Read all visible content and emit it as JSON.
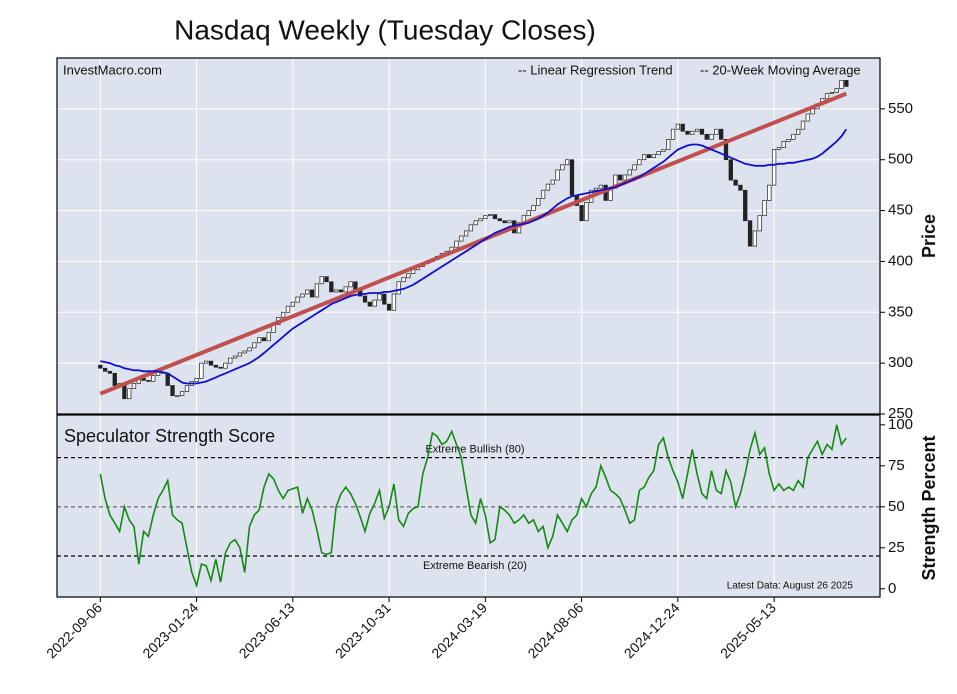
{
  "chart_data": [
    {
      "type": "candlestick",
      "title": "Nasdaq Weekly (Tuesday Closes)",
      "source": "InvestMacro.com",
      "y_label": "Price",
      "categories": [
        "2022-09-06",
        null,
        null,
        null,
        null,
        null,
        null,
        null,
        null,
        null,
        null,
        null,
        null,
        null,
        null,
        null,
        null,
        null,
        null,
        null,
        "2023-01-24",
        null,
        null,
        null,
        null,
        null,
        null,
        null,
        null,
        null,
        null,
        null,
        null,
        null,
        null,
        null,
        null,
        null,
        null,
        null,
        "2023-06-13",
        null,
        null,
        null,
        null,
        null,
        null,
        null,
        null,
        null,
        null,
        null,
        null,
        null,
        null,
        null,
        null,
        null,
        null,
        null,
        "2023-10-31",
        null,
        null,
        null,
        null,
        null,
        null,
        null,
        null,
        null,
        null,
        null,
        null,
        null,
        null,
        null,
        null,
        null,
        null,
        null,
        "2024-03-19",
        null,
        null,
        null,
        null,
        null,
        null,
        null,
        null,
        null,
        null,
        null,
        null,
        null,
        null,
        null,
        null,
        null,
        null,
        null,
        "2024-08-06",
        null,
        null,
        null,
        null,
        null,
        null,
        null,
        null,
        null,
        null,
        null,
        null,
        null,
        null,
        null,
        null,
        null,
        null,
        null,
        "2024-12-24",
        null,
        null,
        null,
        null,
        null,
        null,
        null,
        null,
        null,
        null,
        null,
        null,
        null,
        null,
        null,
        null,
        null,
        null,
        null,
        "2025-05-13",
        null,
        null,
        null,
        null,
        null,
        null,
        null,
        null,
        null,
        null,
        null,
        null,
        null,
        null,
        null
      ],
      "open": [
        298,
        295,
        292,
        290,
        278,
        280,
        265,
        275,
        280,
        285,
        283,
        282,
        288,
        291,
        290,
        278,
        268,
        268,
        272,
        278,
        282,
        285,
        300,
        302,
        298,
        296,
        295,
        300,
        305,
        307,
        310,
        312,
        315,
        320,
        325,
        322,
        330,
        338,
        345,
        350,
        356,
        360,
        365,
        368,
        372,
        365,
        378,
        385,
        380,
        370,
        372,
        370,
        375,
        380,
        372,
        366,
        360,
        356,
        362,
        368,
        358,
        352,
        368,
        380,
        384,
        388,
        392,
        395,
        398,
        400,
        402,
        405,
        408,
        410,
        414,
        420,
        425,
        430,
        436,
        440,
        442,
        445,
        446,
        442,
        440,
        438,
        440,
        428,
        438,
        445,
        450,
        455,
        462,
        470,
        476,
        480,
        490,
        495,
        500,
        465,
        455,
        440,
        458,
        470,
        472,
        475,
        460,
        472,
        485,
        480,
        485,
        490,
        495,
        500,
        505,
        502,
        505,
        508,
        510,
        520,
        530,
        535,
        528,
        525,
        528,
        530,
        525,
        520,
        525,
        530,
        520,
        500,
        480,
        475,
        470,
        440,
        415,
        430,
        445,
        460,
        475,
        510,
        512,
        518,
        520,
        525,
        530,
        538,
        545,
        550,
        555,
        560,
        565,
        566,
        570,
        578
      ],
      "close": [
        295,
        292,
        290,
        278,
        280,
        265,
        275,
        280,
        285,
        283,
        282,
        288,
        291,
        290,
        278,
        268,
        268,
        272,
        278,
        282,
        285,
        300,
        302,
        298,
        296,
        295,
        300,
        305,
        307,
        310,
        312,
        315,
        320,
        325,
        322,
        330,
        338,
        345,
        350,
        356,
        360,
        365,
        368,
        372,
        365,
        378,
        385,
        380,
        370,
        372,
        370,
        375,
        380,
        372,
        366,
        360,
        356,
        362,
        368,
        358,
        352,
        368,
        380,
        384,
        388,
        392,
        395,
        398,
        400,
        402,
        405,
        408,
        410,
        414,
        420,
        425,
        430,
        436,
        440,
        442,
        445,
        446,
        442,
        440,
        438,
        440,
        428,
        438,
        445,
        450,
        455,
        462,
        470,
        476,
        480,
        490,
        495,
        500,
        465,
        455,
        440,
        458,
        470,
        472,
        475,
        460,
        472,
        485,
        480,
        485,
        490,
        495,
        500,
        505,
        502,
        505,
        508,
        510,
        520,
        530,
        535,
        528,
        525,
        528,
        530,
        525,
        520,
        525,
        530,
        520,
        500,
        480,
        475,
        470,
        440,
        415,
        430,
        445,
        460,
        475,
        510,
        512,
        518,
        520,
        525,
        530,
        538,
        545,
        550,
        555,
        560,
        565,
        566,
        570,
        578,
        572
      ],
      "up_color": "#ffffff",
      "down_color": "#222222",
      "lines": [
        {
          "name": "-- Linear Regression Trend",
          "color": "#c0504d",
          "values": [
            270,
            565
          ]
        },
        {
          "name": "-- 20-Week Moving Average",
          "color": "#1010cc",
          "values": [
            302,
            301,
            300,
            298,
            297,
            295,
            294,
            293,
            293,
            292,
            292,
            292,
            292,
            291,
            290,
            287,
            284,
            281,
            280,
            280,
            280,
            281,
            282,
            284,
            286,
            288,
            290,
            292,
            294,
            296,
            298,
            300,
            303,
            306,
            310,
            314,
            318,
            322,
            326,
            330,
            334,
            337,
            340,
            343,
            346,
            349,
            352,
            355,
            358,
            360,
            362,
            364,
            366,
            367,
            368,
            368,
            369,
            369,
            369,
            370,
            370,
            371,
            372,
            373,
            375,
            377,
            380,
            383,
            386,
            389,
            392,
            395,
            398,
            401,
            404,
            407,
            410,
            413,
            416,
            419,
            422,
            425,
            428,
            430,
            432,
            434,
            435,
            436,
            437,
            438,
            440,
            442,
            445,
            448,
            452,
            456,
            459,
            462,
            464,
            465,
            466,
            467,
            468,
            469,
            470,
            471,
            472,
            473,
            475,
            477,
            479,
            481,
            483,
            486,
            489,
            492,
            495,
            498,
            502,
            506,
            510,
            512,
            514,
            515,
            515,
            514,
            512,
            510,
            508,
            506,
            504,
            502,
            500,
            498,
            496,
            495,
            494,
            494,
            494,
            495,
            495,
            496,
            496,
            497,
            497,
            498,
            499,
            500,
            501,
            503,
            506,
            510,
            514,
            518,
            523,
            530
          ]
        }
      ],
      "ylim": [
        250,
        600
      ],
      "yticks": [
        250,
        300,
        350,
        400,
        450,
        500,
        550
      ],
      "grid": true
    },
    {
      "type": "line",
      "title": "Speculator Strength Score",
      "y_label": "Strength Percent",
      "annotation": "Latest Data: August 26 2025",
      "color": "#138a13",
      "values": [
        70,
        55,
        45,
        40,
        35,
        50,
        42,
        38,
        15,
        35,
        32,
        45,
        55,
        60,
        66,
        45,
        42,
        40,
        25,
        10,
        2,
        15,
        14,
        5,
        18,
        4,
        22,
        28,
        30,
        25,
        10,
        38,
        45,
        48,
        62,
        70,
        67,
        60,
        55,
        60,
        61,
        62,
        46,
        55,
        48,
        36,
        22,
        21,
        22,
        50,
        58,
        62,
        58,
        52,
        44,
        35,
        46,
        52,
        60,
        43,
        50,
        64,
        42,
        38,
        46,
        49,
        50,
        70,
        80,
        95,
        93,
        88,
        90,
        96,
        88,
        80,
        62,
        45,
        40,
        55,
        45,
        28,
        30,
        50,
        48,
        45,
        40,
        42,
        45,
        40,
        42,
        35,
        38,
        25,
        32,
        45,
        40,
        35,
        42,
        45,
        55,
        50,
        58,
        62,
        75,
        68,
        60,
        58,
        55,
        48,
        40,
        42,
        60,
        62,
        68,
        72,
        88,
        92,
        80,
        72,
        65,
        55,
        70,
        85,
        70,
        58,
        55,
        72,
        60,
        58,
        72,
        65,
        50,
        58,
        70,
        85,
        95,
        82,
        86,
        70,
        60,
        64,
        60,
        62,
        60,
        66,
        62,
        80,
        85,
        90,
        82,
        88,
        85,
        100,
        88,
        92
      ],
      "ref_lines": [
        {
          "value": 80,
          "label": "Extreme Bullish (80)",
          "color": "#000000"
        },
        {
          "value": 50,
          "color": "#777777"
        },
        {
          "value": 20,
          "label": "Extreme Bearish (20)",
          "color": "#000000"
        }
      ],
      "ylim": [
        -5,
        106
      ],
      "yticks": [
        0,
        25,
        50,
        75,
        100
      ],
      "grid": true
    }
  ]
}
